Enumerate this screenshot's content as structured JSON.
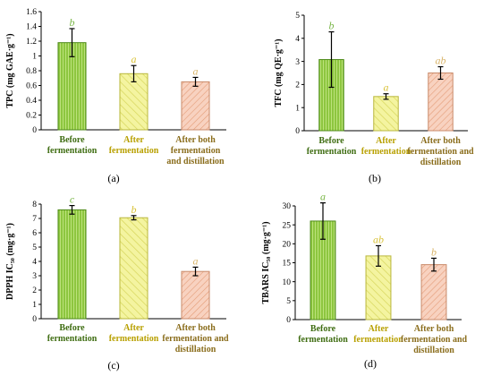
{
  "colors": {
    "before": "#8dc63f",
    "before_dark": "#4e8a1a",
    "after": "#eeee7a",
    "after_dark": "#b9b73c",
    "both": "#f4b79a",
    "both_dark": "#c98a6a",
    "cat_before": "#3f6d12",
    "cat_after": "#b8a000",
    "cat_both": "#8a6d1c",
    "sig_before": "#7ab648",
    "sig_after": "#d9c23a",
    "sig_both": "#d9b56a"
  },
  "chart_data": [
    {
      "type": "bar",
      "panel": "(a)",
      "ylabel": "TPC (mg GAE·g⁻¹)",
      "ylim": [
        0,
        1.6
      ],
      "yticks": [
        "0",
        "0.2",
        "0.4",
        "0.6",
        "0.8",
        "1",
        "1.2",
        "1.4",
        "1.6"
      ],
      "categories": [
        [
          "Before",
          "fermentation"
        ],
        [
          "After",
          "fermentation"
        ],
        [
          "After both",
          "fermentation",
          "and distillation"
        ]
      ],
      "values": [
        1.18,
        0.76,
        0.65
      ],
      "errors": [
        0.19,
        0.11,
        0.06
      ],
      "significance": [
        "b",
        "a",
        "a"
      ]
    },
    {
      "type": "bar",
      "panel": "(b)",
      "ylabel": "TFC (mg QE·g⁻¹)",
      "ylim": [
        0,
        5
      ],
      "yticks": [
        "0",
        "1",
        "2",
        "3",
        "4",
        "5"
      ],
      "categories": [
        [
          "Before",
          "fermentation"
        ],
        [
          "After",
          "fermentation"
        ],
        [
          "After both",
          "fermentation and",
          "distillation"
        ]
      ],
      "values": [
        3.08,
        1.48,
        2.5
      ],
      "errors": [
        1.2,
        0.12,
        0.27
      ],
      "significance": [
        "b",
        "a",
        "ab"
      ]
    },
    {
      "type": "bar",
      "panel": "(c)",
      "ylabel": "DPPH  IC₅₀ (mg·g⁻¹)",
      "ylim": [
        0,
        8
      ],
      "yticks": [
        "0",
        "1",
        "2",
        "3",
        "4",
        "5",
        "6",
        "7",
        "8"
      ],
      "categories": [
        [
          "Before",
          "fermentation"
        ],
        [
          "After",
          "fermentation"
        ],
        [
          "After both",
          "fermentation and",
          "distillation"
        ]
      ],
      "values": [
        7.6,
        7.05,
        3.3
      ],
      "errors": [
        0.3,
        0.15,
        0.3
      ],
      "significance": [
        "c",
        "b",
        "a"
      ]
    },
    {
      "type": "bar",
      "panel": "(d)",
      "ylabel": "TBARS  IC₅₀ (mg·g⁻¹)",
      "ylim": [
        0,
        30
      ],
      "yticks": [
        "0",
        "5",
        "10",
        "15",
        "20",
        "25",
        "30"
      ],
      "categories": [
        [
          "Before",
          "fermentation"
        ],
        [
          "After",
          "fermentation"
        ],
        [
          "After both",
          "fermentation and",
          "distillation"
        ]
      ],
      "values": [
        26.0,
        16.8,
        14.5
      ],
      "errors": [
        4.8,
        2.7,
        1.7
      ],
      "significance": [
        "a",
        "ab",
        "b"
      ]
    }
  ]
}
